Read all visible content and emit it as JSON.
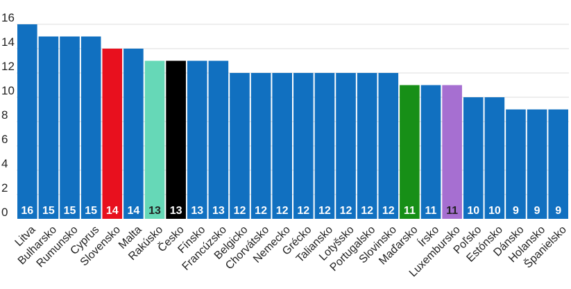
{
  "chart_data": {
    "type": "bar",
    "categories": [
      "Litva",
      "Bulharsko",
      "Rumunsko",
      "Cyprus",
      "Slovensko",
      "Malta",
      "Rakúsko",
      "Česko",
      "Fínsko",
      "Francúzsko",
      "Belgicko",
      "Chorvátsko",
      "Nemecko",
      "Grécko",
      "Taliansko",
      "Lotyšsko",
      "Portugalsko",
      "Slovinsko",
      "Maďarsko",
      "Írsko",
      "Luxembursko",
      "Poľsko",
      "Estónsko",
      "Dánsko",
      "Holansko",
      "Španielsko"
    ],
    "values": [
      16,
      15,
      15,
      15,
      14,
      14,
      13,
      13,
      13,
      13,
      12,
      12,
      12,
      12,
      12,
      12,
      12,
      12,
      11,
      11,
      11,
      10,
      10,
      9,
      9,
      9
    ],
    "colors": [
      "#1170c0",
      "#1170c0",
      "#1170c0",
      "#1170c0",
      "#e8101e",
      "#1170c0",
      "#66d8b7",
      "#000000",
      "#1170c0",
      "#1170c0",
      "#1170c0",
      "#1170c0",
      "#1170c0",
      "#1170c0",
      "#1170c0",
      "#1170c0",
      "#1170c0",
      "#1170c0",
      "#178f17",
      "#1170c0",
      "#a66fd1",
      "#1170c0",
      "#1170c0",
      "#1170c0",
      "#1170c0",
      "#1170c0"
    ],
    "label_colors": [
      "#ffffff",
      "#ffffff",
      "#ffffff",
      "#ffffff",
      "#ffffff",
      "#ffffff",
      "#222222",
      "#ffffff",
      "#ffffff",
      "#ffffff",
      "#ffffff",
      "#ffffff",
      "#ffffff",
      "#ffffff",
      "#ffffff",
      "#ffffff",
      "#ffffff",
      "#ffffff",
      "#ffffff",
      "#ffffff",
      "#222222",
      "#ffffff",
      "#ffffff",
      "#ffffff",
      "#ffffff",
      "#ffffff"
    ],
    "yticks": [
      0,
      2,
      4,
      6,
      8,
      10,
      12,
      14,
      16
    ],
    "ylim": [
      0,
      16
    ],
    "grid": true,
    "title": "",
    "xlabel": "",
    "ylabel": ""
  }
}
